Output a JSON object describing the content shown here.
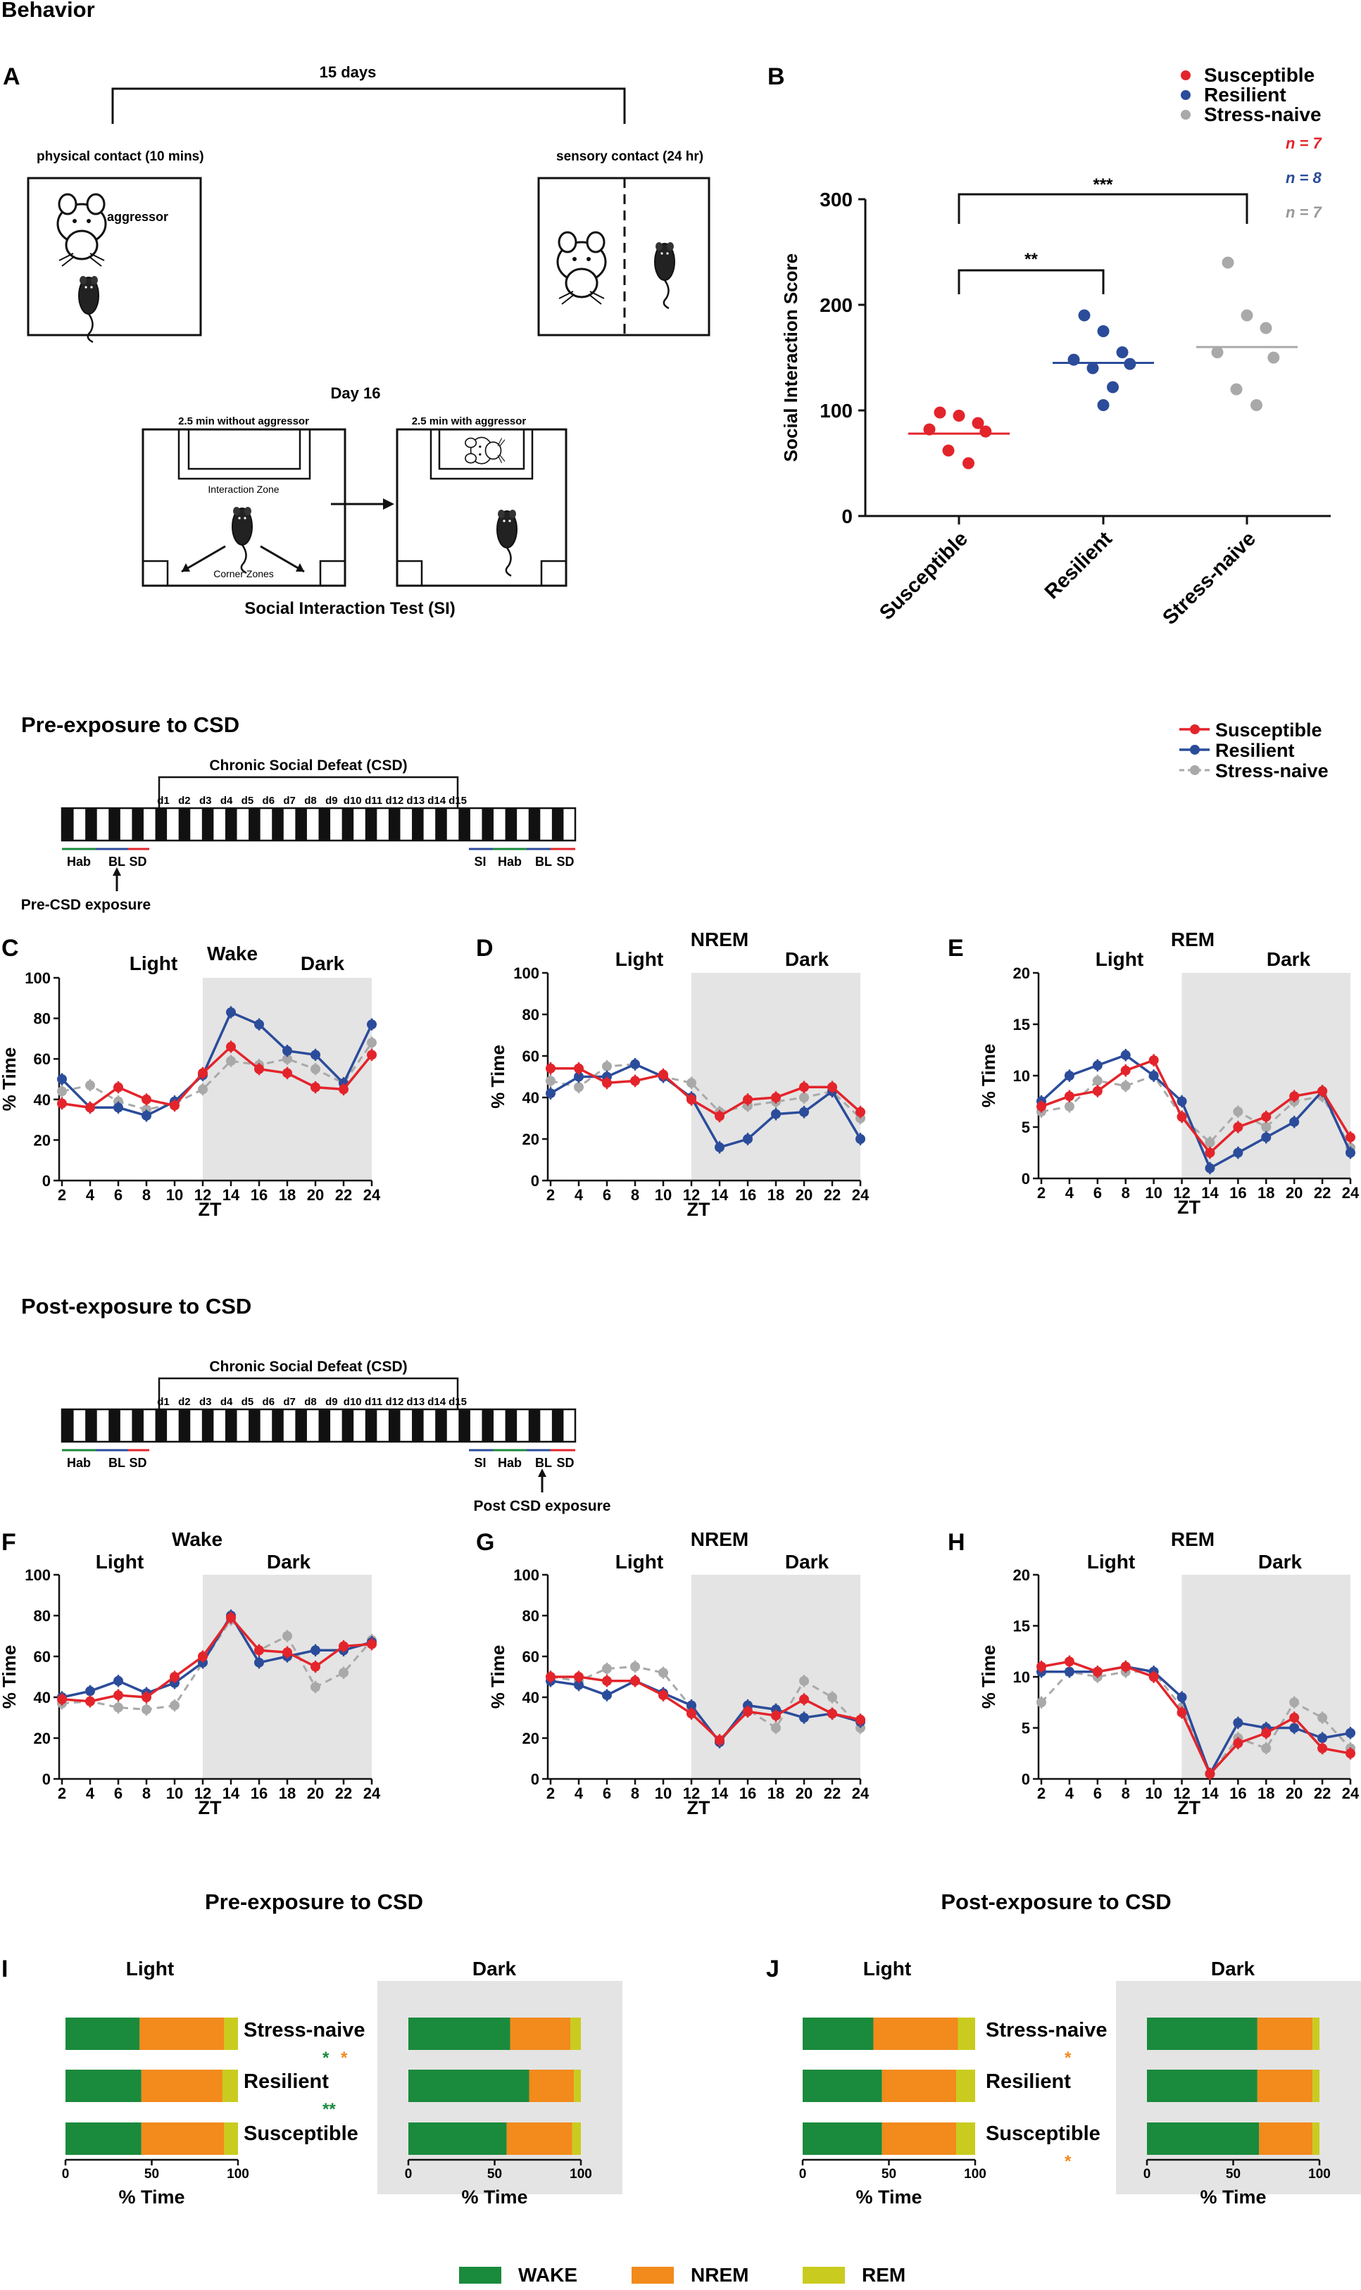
{
  "section_behavior": "Behavior",
  "panel_letters": [
    "A",
    "B",
    "C",
    "D",
    "E",
    "F",
    "G",
    "H",
    "I",
    "J"
  ],
  "panelA": {
    "days": "15 days",
    "physical": "physical contact (10 mins)",
    "sensory": "sensory contact (24 hr)",
    "aggressor": "aggressor",
    "day16": "Day 16",
    "without": "2.5 min without aggressor",
    "with": "2.5 min with aggressor",
    "interaction_zone": "Interaction Zone",
    "corner_zones": "Corner Zones",
    "si_test": "Social Interaction Test (SI)"
  },
  "chart_data": [
    {
      "id": "B",
      "type": "scatter",
      "title": "",
      "ylabel": "Social Interaction Score",
      "ylim": [
        0,
        300
      ],
      "yticks": [
        0,
        100,
        200,
        300
      ],
      "categories": [
        "Susceptible",
        "Resilient",
        "Stress-naive"
      ],
      "colors": [
        "#e3242b",
        "#2b4c9a",
        "#a9a9a9"
      ],
      "points": [
        [
          98,
          95,
          88,
          82,
          80,
          62,
          50
        ],
        [
          190,
          175,
          155,
          148,
          144,
          140,
          122,
          105
        ],
        [
          240,
          190,
          178,
          155,
          150,
          120,
          105
        ]
      ],
      "means": [
        78,
        145,
        160
      ],
      "legend": [
        "Susceptible",
        "Resilient",
        "Stress-naive"
      ],
      "n_labels": [
        "n = 7",
        "n = 8",
        "n = 7"
      ],
      "sig": [
        {
          "pair": [
            0,
            1
          ],
          "label": "**"
        },
        {
          "pair": [
            0,
            2
          ],
          "label": "***"
        }
      ]
    },
    {
      "id": "C",
      "type": "line",
      "title": "Wake",
      "ylabel": "% Time",
      "xlabel": "ZT",
      "ylim": [
        0,
        100
      ],
      "yticks": [
        0,
        20,
        40,
        60,
        80,
        100
      ],
      "x": [
        2,
        4,
        6,
        8,
        10,
        12,
        14,
        16,
        18,
        20,
        22,
        24
      ],
      "series": [
        {
          "name": "Stress-naive",
          "values": [
            44,
            47,
            39,
            35,
            38,
            45,
            59,
            57,
            60,
            55,
            48,
            68
          ]
        },
        {
          "name": "Resilient",
          "values": [
            50,
            36,
            36,
            32,
            39,
            52,
            83,
            77,
            64,
            62,
            48,
            77
          ]
        },
        {
          "name": "Susceptible",
          "values": [
            38,
            36,
            46,
            40,
            37,
            53,
            66,
            55,
            53,
            46,
            45,
            62
          ]
        }
      ]
    },
    {
      "id": "D",
      "type": "line",
      "title": "NREM",
      "ylabel": "% Time",
      "xlabel": "ZT",
      "ylim": [
        0,
        100
      ],
      "yticks": [
        0,
        20,
        40,
        60,
        80,
        100
      ],
      "x": [
        2,
        4,
        6,
        8,
        10,
        12,
        14,
        16,
        18,
        20,
        22,
        24
      ],
      "series": [
        {
          "name": "Stress-naive",
          "values": [
            48,
            45,
            55,
            56,
            50,
            47,
            33,
            36,
            38,
            40,
            43,
            30
          ]
        },
        {
          "name": "Resilient",
          "values": [
            42,
            50,
            50,
            56,
            50,
            40,
            16,
            20,
            32,
            33,
            43,
            20
          ]
        },
        {
          "name": "Susceptible",
          "values": [
            54,
            54,
            47,
            48,
            51,
            39,
            31,
            39,
            40,
            45,
            45,
            33
          ]
        }
      ]
    },
    {
      "id": "E",
      "type": "line",
      "title": "REM",
      "ylabel": "% Time",
      "xlabel": "ZT",
      "ylim": [
        0,
        20
      ],
      "yticks": [
        0,
        5,
        10,
        15,
        20
      ],
      "x": [
        2,
        4,
        6,
        8,
        10,
        12,
        14,
        16,
        18,
        20,
        22,
        24
      ],
      "series": [
        {
          "name": "Stress-naive",
          "values": [
            6.5,
            7,
            9.5,
            9,
            10,
            6,
            3.5,
            6.5,
            5,
            7.5,
            8,
            3
          ]
        },
        {
          "name": "Resilient",
          "values": [
            7.5,
            10,
            11,
            12,
            10,
            7.5,
            1,
            2.5,
            4,
            5.5,
            8.5,
            2.5
          ]
        },
        {
          "name": "Susceptible",
          "values": [
            7,
            8,
            8.5,
            10.5,
            11.5,
            6,
            2.5,
            5,
            6,
            8,
            8.5,
            4
          ]
        }
      ]
    },
    {
      "id": "F",
      "type": "line",
      "title": "Wake",
      "ylabel": "% Time",
      "xlabel": "ZT",
      "ylim": [
        0,
        100
      ],
      "yticks": [
        0,
        20,
        40,
        60,
        80,
        100
      ],
      "x": [
        2,
        4,
        6,
        8,
        10,
        12,
        14,
        16,
        18,
        20,
        22,
        24
      ],
      "series": [
        {
          "name": "Stress-naive",
          "values": [
            37,
            38,
            35,
            34,
            36,
            57,
            78,
            63,
            70,
            45,
            52,
            68
          ]
        },
        {
          "name": "Resilient",
          "values": [
            40,
            43,
            48,
            42,
            47,
            57,
            80,
            57,
            60,
            63,
            63,
            67
          ]
        },
        {
          "name": "Susceptible",
          "values": [
            39,
            38,
            41,
            40,
            50,
            60,
            79,
            63,
            62,
            55,
            65,
            66
          ]
        }
      ]
    },
    {
      "id": "G",
      "type": "line",
      "title": "NREM",
      "ylabel": "% Time",
      "xlabel": "ZT",
      "ylim": [
        0,
        100
      ],
      "yticks": [
        0,
        20,
        40,
        60,
        80,
        100
      ],
      "x": [
        2,
        4,
        6,
        8,
        10,
        12,
        14,
        16,
        18,
        20,
        22,
        24
      ],
      "series": [
        {
          "name": "Stress-naive",
          "values": [
            50,
            48,
            54,
            55,
            52,
            35,
            18,
            34,
            25,
            48,
            40,
            25
          ]
        },
        {
          "name": "Resilient",
          "values": [
            48,
            46,
            41,
            48,
            42,
            36,
            18,
            36,
            34,
            30,
            32,
            28
          ]
        },
        {
          "name": "Susceptible",
          "values": [
            50,
            50,
            48,
            48,
            41,
            32,
            19,
            33,
            31,
            39,
            32,
            29
          ]
        }
      ]
    },
    {
      "id": "H",
      "type": "line",
      "title": "REM",
      "ylabel": "% Time",
      "xlabel": "ZT",
      "ylim": [
        0,
        20
      ],
      "yticks": [
        0,
        5,
        10,
        15,
        20
      ],
      "x": [
        2,
        4,
        6,
        8,
        10,
        12,
        14,
        16,
        18,
        20,
        22,
        24
      ],
      "series": [
        {
          "name": "Stress-naive",
          "values": [
            7.5,
            10.5,
            10,
            10.5,
            10.5,
            7,
            0.5,
            4,
            3,
            7.5,
            6,
            3
          ]
        },
        {
          "name": "Resilient",
          "values": [
            10.5,
            10.5,
            10.5,
            11,
            10.5,
            8,
            0.5,
            5.5,
            5,
            5,
            4,
            4.5
          ]
        },
        {
          "name": "Susceptible",
          "values": [
            11,
            11.5,
            10.5,
            11,
            10,
            6.5,
            0.5,
            3.5,
            4.5,
            6,
            3,
            2.5
          ]
        }
      ]
    },
    {
      "id": "I",
      "type": "bar",
      "title": "Pre-exposure to CSD",
      "xlabel": "% Time",
      "xlim": [
        0,
        100
      ],
      "xticks": [
        0,
        50,
        100
      ],
      "groups": [
        "Light",
        "Dark"
      ],
      "categories": [
        "Stress-naive",
        "Resilient",
        "Susceptible"
      ],
      "series": [
        {
          "name": "WAKE",
          "light": [
            43,
            44,
            44
          ],
          "dark": [
            59,
            70,
            57
          ]
        },
        {
          "name": "NREM",
          "light": [
            49,
            47,
            48
          ],
          "dark": [
            35,
            26,
            38
          ]
        },
        {
          "name": "REM",
          "light": [
            8,
            9,
            8
          ],
          "dark": [
            6,
            4,
            5
          ]
        }
      ],
      "annotations": {
        "Stress-naive": [
          "*",
          "*"
        ],
        "Resilient": [
          "**"
        ],
        "Susceptible": []
      }
    },
    {
      "id": "J",
      "type": "bar",
      "title": "Post-exposure to CSD",
      "xlabel": "% Time",
      "xlim": [
        0,
        100
      ],
      "xticks": [
        0,
        50,
        100
      ],
      "groups": [
        "Light",
        "Dark"
      ],
      "categories": [
        "Stress-naive",
        "Resilient",
        "Susceptible"
      ],
      "series": [
        {
          "name": "WAKE",
          "light": [
            41,
            46,
            46
          ],
          "dark": [
            64,
            64,
            65
          ]
        },
        {
          "name": "NREM",
          "light": [
            49,
            43,
            43
          ],
          "dark": [
            32,
            32,
            31
          ]
        },
        {
          "name": "REM",
          "light": [
            10,
            11,
            11
          ],
          "dark": [
            4,
            4,
            4
          ]
        }
      ],
      "annotations": {
        "Stress-naive": [
          "*"
        ],
        "Resilient": [],
        "Susceptible": [
          "*"
        ]
      }
    }
  ],
  "colors": {
    "susceptible": "#e3242b",
    "resilient": "#2b4c9a",
    "naive": "#a9a9a9",
    "wake": "#1a8a3c",
    "nrem": "#f28a1c",
    "rem": "#c9cc1e",
    "dark_shade": "#e4e4e4",
    "hab": "#1a8a3c",
    "bl": "#2b4c9a",
    "sd": "#e3242b",
    "n_naive": "#999999"
  },
  "pre": {
    "heading": "Pre-exposure to CSD",
    "csd": "Chronic Social Defeat (CSD)",
    "days": [
      "d1",
      "d2",
      "d3",
      "d4",
      "d5",
      "d6",
      "d7",
      "d8",
      "d9",
      "d10",
      "d11",
      "d12",
      "d13",
      "d14",
      "d15"
    ],
    "hab": "Hab",
    "bl": "BL",
    "sd": "SD",
    "si": "SI",
    "pointer": "Pre-CSD exposure"
  },
  "post": {
    "heading": "Post-exposure to CSD",
    "pointer": "Post CSD exposure"
  },
  "line_legend": [
    "Susceptible",
    "Resilient",
    "Stress-naive"
  ],
  "period": {
    "light": "Light",
    "dark": "Dark"
  },
  "bar_headings": {
    "pre": "Pre-exposure to CSD",
    "post": "Post-exposure to CSD"
  },
  "bar_legend": [
    "WAKE",
    "NREM",
    "REM"
  ]
}
